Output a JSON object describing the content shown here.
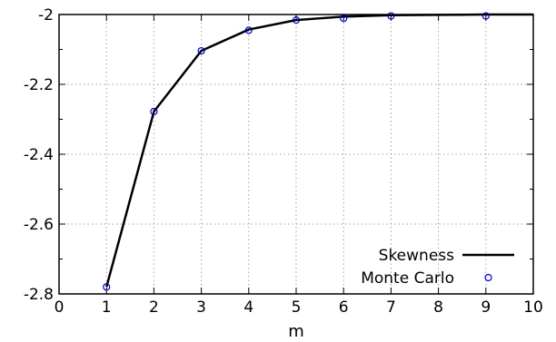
{
  "chart_data": {
    "type": "line",
    "title": "",
    "xlabel": "m",
    "ylabel": "",
    "xlim": [
      0,
      10
    ],
    "ylim": [
      -2.8,
      -2.0
    ],
    "xticks": [
      0,
      1,
      2,
      3,
      4,
      5,
      6,
      7,
      8,
      9,
      10
    ],
    "yticks": [
      -2.8,
      -2.6,
      -2.4,
      -2.2,
      -2.0
    ],
    "ytick_labels": [
      "-2.8",
      "-2.6",
      "-2.4",
      "-2.2",
      "-2"
    ],
    "y_minor_ticks": [
      -2.7,
      -2.5,
      -2.3,
      -2.1
    ],
    "grid": true,
    "legend_position": "bottom-right",
    "series": [
      {
        "name": "Skewness",
        "kind": "line",
        "color": "#000000",
        "x": [
          1,
          2,
          3,
          4,
          5,
          6,
          7,
          8,
          9,
          10
        ],
        "y": [
          -2.78,
          -2.278,
          -2.104,
          -2.043,
          -2.016,
          -2.006,
          -2.002,
          -2.001,
          -2.0,
          -2.0
        ]
      },
      {
        "name": "Monte Carlo",
        "kind": "scatter",
        "marker": "open-circle",
        "color": "#0000cc",
        "x": [
          1,
          2,
          3,
          4,
          5,
          6,
          7,
          9
        ],
        "y": [
          -2.78,
          -2.278,
          -2.104,
          -2.045,
          -2.016,
          -2.011,
          -2.004,
          -2.004
        ]
      }
    ]
  }
}
